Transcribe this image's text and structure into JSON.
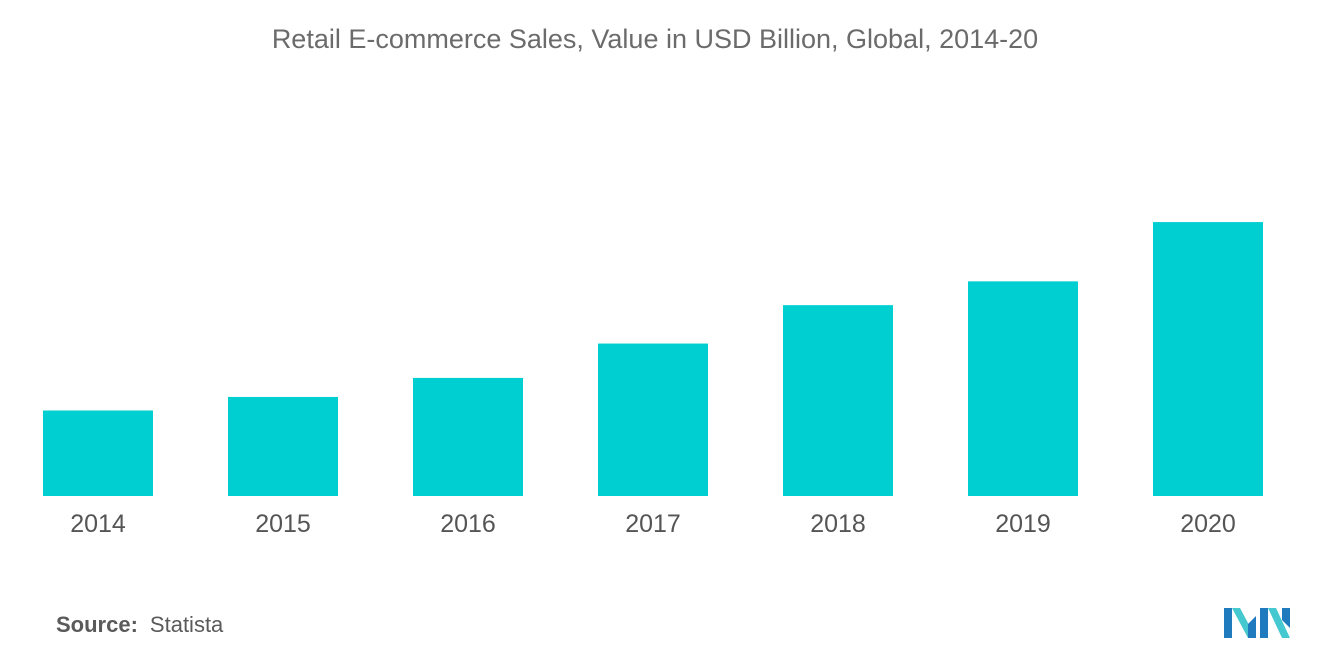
{
  "chart_data": {
    "type": "bar",
    "title": "Retail E-commerce Sales, Value in USD Billion, Global, 2014-20",
    "categories": [
      "2014",
      "2015",
      "2016",
      "2017",
      "2018",
      "2019",
      "2020"
    ],
    "values": [
      1336,
      1548,
      1845,
      2382,
      2982,
      3354,
      4280
    ],
    "ylim": [
      0,
      4500
    ],
    "xlabel": "",
    "ylabel": "",
    "grid": false,
    "bar_color": "#00cfd1"
  },
  "source": {
    "label": "Source:",
    "value": "Statista"
  },
  "colors": {
    "bar": "#00cfd1",
    "axis_text": "#555555",
    "title_text": "#6b6b6b",
    "logo_dark": "#1f7bbd",
    "logo_light": "#46c8d0"
  },
  "logo": {
    "icon": "mordor-intelligence-logo-icon"
  }
}
